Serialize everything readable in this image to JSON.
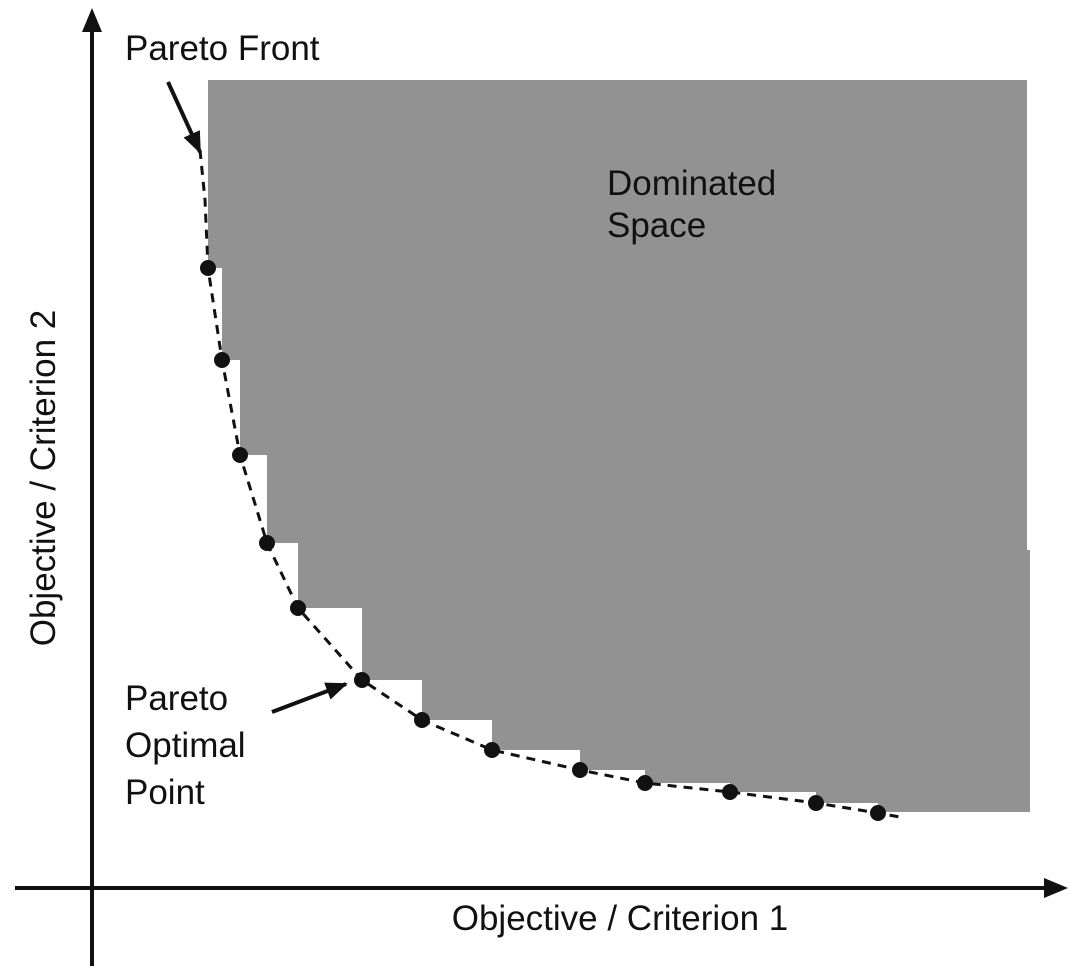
{
  "labels": {
    "pareto_front": "Pareto Front",
    "dominated_space": [
      "Dominated",
      "Space"
    ],
    "pareto_optimal_point": [
      "Pareto",
      "Optimal",
      "Point"
    ],
    "y_axis": "Objective / Criterion 2",
    "x_axis": "Objective / Criterion 1"
  }
}
